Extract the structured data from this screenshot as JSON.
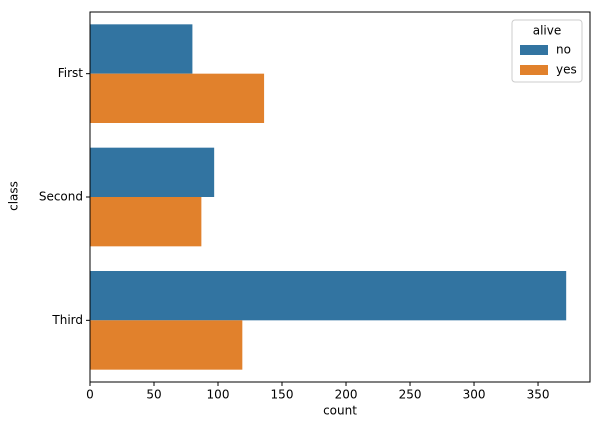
{
  "chart_data": {
    "type": "barh",
    "xlabel": "count",
    "ylabel": "class",
    "categories": [
      "First",
      "Second",
      "Third"
    ],
    "series": [
      {
        "name": "no",
        "color": "#3274a1",
        "values": [
          80,
          97,
          372
        ]
      },
      {
        "name": "yes",
        "color": "#e1812c",
        "values": [
          136,
          87,
          119
        ]
      }
    ],
    "legend_title": "alive",
    "legend": "upper right",
    "xlim": [
      0,
      390.6
    ],
    "xticks": [
      0,
      50,
      100,
      150,
      200,
      250,
      300,
      350
    ]
  }
}
